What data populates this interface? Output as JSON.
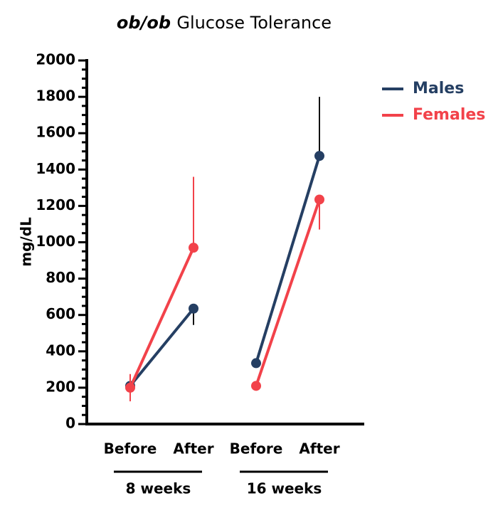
{
  "chart_data": {
    "type": "line",
    "title": "ob/ob Glucose Tolerance",
    "title_italic_words": 1,
    "ylabel": "mg/dL",
    "categories": [
      "Before",
      "After",
      "Before",
      "After"
    ],
    "groups": [
      {
        "label": "8 weeks",
        "members": [
          0,
          1
        ]
      },
      {
        "label": "16 weeks",
        "members": [
          2,
          3
        ]
      }
    ],
    "series": [
      {
        "name": "Males",
        "color": "#253f63",
        "error_color": "#111111",
        "values": [
          210,
          635,
          335,
          1475
        ],
        "errors": [
          null,
          90,
          null,
          325
        ],
        "error_sides": [
          null,
          "down",
          null,
          "up"
        ]
      },
      {
        "name": "Females",
        "color": "#f2424a",
        "error_color": "#f2424a",
        "values": [
          200,
          970,
          210,
          1235
        ],
        "errors": [
          75,
          390,
          null,
          165
        ],
        "error_sides": [
          "both",
          "up",
          null,
          "down"
        ]
      }
    ],
    "ylim": [
      0,
      2000
    ],
    "yticks": [
      0,
      200,
      400,
      600,
      800,
      1000,
      1200,
      1400,
      1600,
      1800,
      2000
    ],
    "yminorticks": [
      50,
      100,
      150,
      250,
      300,
      350,
      450,
      500,
      550,
      650,
      700,
      750,
      850,
      900,
      950,
      1050,
      1100,
      1150,
      1250,
      1300,
      1350,
      1450,
      1500,
      1550,
      1650,
      1700,
      1750,
      1850,
      1900,
      1950
    ],
    "grid": false,
    "legend": "upper right"
  }
}
